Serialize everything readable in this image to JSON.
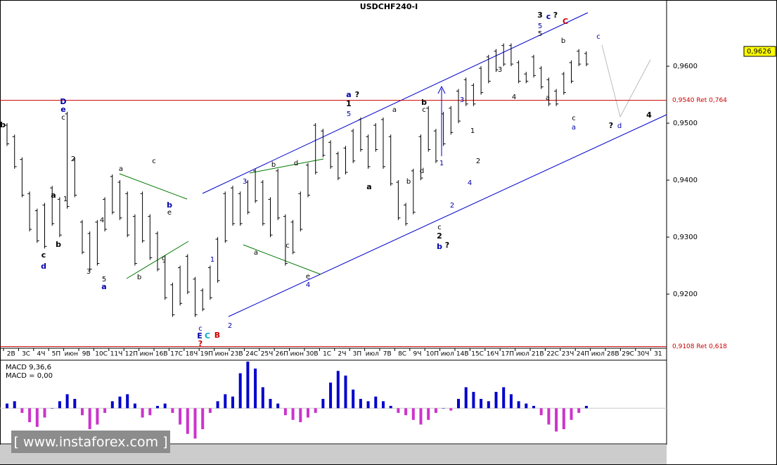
{
  "chart_data": {
    "type": "range",
    "title": "USDCHF240-I",
    "categories": [
      "2В",
      "3С",
      "4Ч",
      "5П",
      "июн",
      "9В",
      "10С",
      "11Ч",
      "12П",
      "июн",
      "16В",
      "17С",
      "18Ч",
      "19П",
      "июн",
      "23В",
      "24С",
      "25Ч",
      "26П",
      "июн",
      "30В",
      "1С",
      "2Ч",
      "3П",
      "июл",
      "7В",
      "8С",
      "9Ч",
      "10П",
      "июл",
      "14В",
      "15С",
      "16Ч",
      "17П",
      "июл",
      "21В",
      "22С",
      "23Ч",
      "24П",
      "июл",
      "28В",
      "29С",
      "30Ч",
      "31"
    ],
    "highs": [
      0.95,
      0.948,
      0.944,
      0.938,
      0.935,
      0.936,
      0.939,
      0.937,
      0.952,
      0.944,
      0.933,
      0.931,
      0.933,
      0.937,
      0.941,
      0.94,
      0.938,
      0.934,
      0.938,
      0.934,
      0.931,
      0.926,
      0.922,
      0.925,
      0.927,
      0.923,
      0.921,
      0.925,
      0.93,
      0.938,
      0.939,
      0.938,
      0.94,
      0.942,
      0.94,
      0.937,
      0.942,
      0.934,
      0.933,
      0.938,
      0.943,
      0.95,
      0.949,
      0.947,
      0.945,
      0.946,
      0.949,
      0.951,
      0.948,
      0.95,
      0.951,
      0.948,
      0.94,
      0.936,
      0.942,
      0.948,
      0.953,
      0.949,
      0.952,
      0.953,
      0.956,
      0.958,
      0.957,
      0.96,
      0.962,
      0.963,
      0.964,
      0.964,
      0.961,
      0.959,
      0.962,
      0.96,
      0.958,
      0.956,
      0.959,
      0.961,
      0.963,
      0.9626
    ],
    "lows": [
      0.946,
      0.942,
      0.937,
      0.931,
      0.929,
      0.928,
      0.932,
      0.93,
      0.935,
      0.937,
      0.927,
      0.924,
      0.925,
      0.931,
      0.934,
      0.933,
      0.93,
      0.925,
      0.929,
      0.926,
      0.924,
      0.919,
      0.916,
      0.918,
      0.92,
      0.916,
      0.917,
      0.919,
      0.922,
      0.929,
      0.932,
      0.932,
      0.934,
      0.936,
      0.932,
      0.93,
      0.933,
      0.925,
      0.927,
      0.931,
      0.937,
      0.941,
      0.944,
      0.942,
      0.94,
      0.941,
      0.943,
      0.945,
      0.942,
      0.945,
      0.942,
      0.939,
      0.933,
      0.932,
      0.934,
      0.94,
      0.945,
      0.943,
      0.946,
      0.948,
      0.95,
      0.953,
      0.953,
      0.955,
      0.957,
      0.959,
      0.96,
      0.96,
      0.957,
      0.957,
      0.958,
      0.956,
      0.953,
      0.953,
      0.955,
      0.957,
      0.96,
      0.96
    ],
    "color": "#000000",
    "ylim": [
      0.9105,
      0.971
    ],
    "yticks": [
      {
        "value": 0.92,
        "label": "0,9200"
      },
      {
        "value": 0.93,
        "label": "0,9300"
      },
      {
        "value": 0.94,
        "label": "0,9400"
      },
      {
        "value": 0.95,
        "label": "0,9500"
      },
      {
        "value": 0.96,
        "label": "0,9600"
      }
    ],
    "last": {
      "value": 0.9626,
      "label": "0,9626"
    },
    "levels": [
      {
        "value": 0.954,
        "label": "0,9540 Ret 0,764"
      },
      {
        "value": 0.9108,
        "label": "0,9108 Ret 0,618"
      }
    ],
    "level_color": "#cc0000",
    "wave_labels": [
      "b",
      "D",
      "e",
      "c",
      "2",
      "1",
      "a",
      "b",
      "c",
      "d",
      "3",
      "4",
      "5",
      "a",
      "a",
      "c",
      "b",
      "d",
      "b",
      "e",
      "1",
      "c",
      "E",
      "C",
      "?",
      "B",
      "2",
      "3",
      "b",
      "d",
      "a",
      "c",
      "e",
      "4",
      "a",
      "?",
      "1",
      "5",
      "a",
      "b",
      "c",
      "b",
      "d",
      "a",
      "1",
      "2",
      "c",
      "2",
      "b",
      "?",
      "3",
      "1",
      "2",
      "4",
      "3",
      "4",
      "a",
      "b",
      "5",
      "5",
      "3",
      "c",
      "?",
      "C",
      "c",
      "a",
      "c",
      "?",
      "d",
      "4"
    ],
    "macd": {
      "title": "MACD 9,36,6",
      "value_text": "MACD = 0,00",
      "ylim": [
        -0.003,
        0.004
      ],
      "pos_color": "#0000cc",
      "neg_color": "#cc33cc",
      "values": [
        0.0004,
        0.0006,
        -0.0004,
        -0.0012,
        -0.0016,
        -0.0008,
        0,
        0.0006,
        0.0012,
        0.0008,
        -0.0006,
        -0.0018,
        -0.0014,
        -0.0004,
        0.0006,
        0.001,
        0.0012,
        0.0004,
        -0.0008,
        -0.0006,
        0.0002,
        0.0004,
        -0.0004,
        -0.0014,
        -0.0022,
        -0.0026,
        -0.0018,
        -0.0004,
        0.0006,
        0.0012,
        0.001,
        0.003,
        0.004,
        0.0034,
        0.0018,
        0.0008,
        0.0004,
        -0.0006,
        -0.001,
        -0.0012,
        -0.0008,
        -0.0004,
        0.0008,
        0.0022,
        0.0032,
        0.0028,
        0.0016,
        0.0008,
        0.0006,
        0.001,
        0.0006,
        0.0002,
        -0.0004,
        -0.0006,
        -0.001,
        -0.0014,
        -0.001,
        -0.0004,
        0,
        -0.0002,
        0.0008,
        0.0018,
        0.0014,
        0.0008,
        0.0006,
        0.0014,
        0.0018,
        0.0012,
        0.0006,
        0.0004,
        0.0002,
        -0.0006,
        -0.0014,
        -0.002,
        -0.0018,
        -0.001,
        -0.0004,
        0.0002
      ]
    },
    "watermark": "[ www.instaforex.com ]"
  }
}
